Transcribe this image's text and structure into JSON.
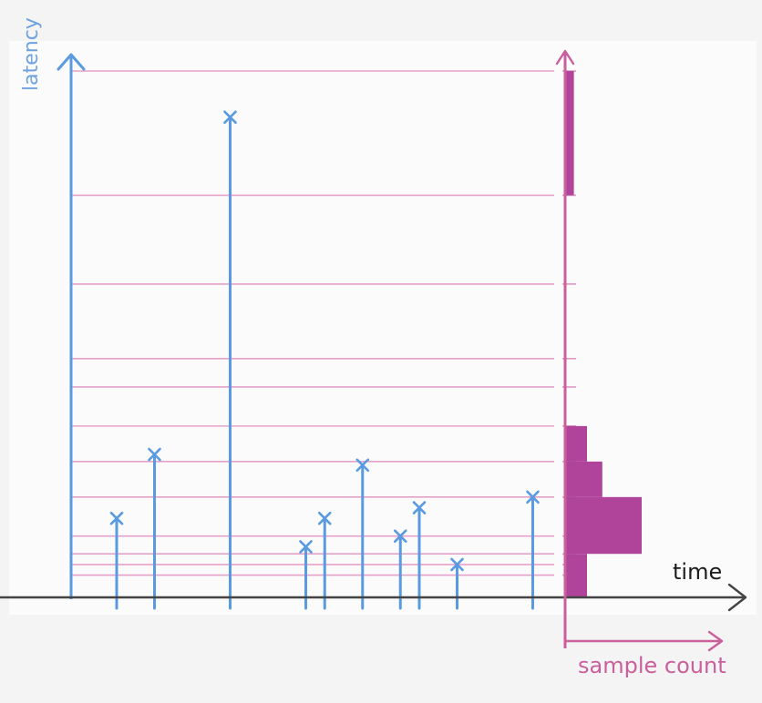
{
  "labels": {
    "y_axis": "latency",
    "x_axis": "time",
    "hist_axis": "sample count"
  },
  "colors": {
    "samples": "#5a9ae0",
    "grid": "#e08ac0",
    "histogram": "#b0449a",
    "time_axis": "#444444",
    "histogram_axis": "#c9609c"
  },
  "chart_data": {
    "type": "scatter",
    "samples": [
      {
        "t": 1,
        "latency": 22
      },
      {
        "t": 2,
        "latency": 40
      },
      {
        "t": 4,
        "latency": 135
      },
      {
        "t": 6,
        "latency": 14
      },
      {
        "t": 6.5,
        "latency": 22
      },
      {
        "t": 7.5,
        "latency": 37
      },
      {
        "t": 8.5,
        "latency": 17
      },
      {
        "t": 9,
        "latency": 25
      },
      {
        "t": 10,
        "latency": 9
      },
      {
        "t": 12,
        "latency": 28
      }
    ],
    "bucket_boundaries": [
      6,
      9,
      12,
      17,
      28,
      38,
      48,
      59,
      67,
      88,
      113,
      148
    ],
    "histogram": [
      {
        "from": 0,
        "to": 12,
        "count": 1
      },
      {
        "from": 12,
        "to": 28,
        "count": 3.5
      },
      {
        "from": 28,
        "to": 38,
        "count": 1.7
      },
      {
        "from": 38,
        "to": 48,
        "count": 1
      },
      {
        "from": 113,
        "to": 148,
        "count": 0.4
      }
    ],
    "ylim": [
      0,
      148
    ]
  }
}
